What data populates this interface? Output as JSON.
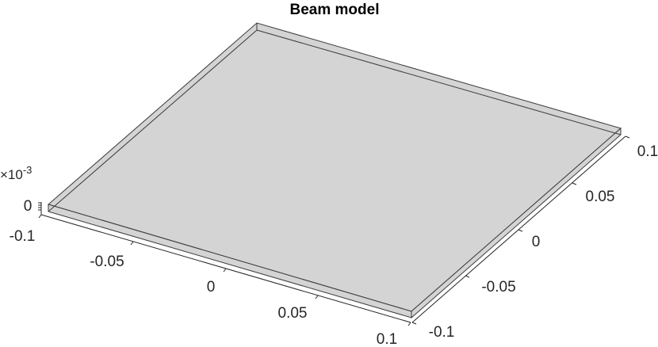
{
  "figure": {
    "title": "Beam model",
    "face_color": "#d4d4d4",
    "edge_color": "#3a3a3a",
    "axis_color": "#262626"
  },
  "axes": {
    "x": {
      "ticks": [
        "-0.1",
        "-0.05",
        "0",
        "0.05",
        "0.1"
      ]
    },
    "y": {
      "ticks": [
        "-0.1",
        "-0.05",
        "0",
        "0.05",
        "0.1"
      ]
    },
    "z": {
      "ticks": [
        "0"
      ],
      "exponent_base": "×10",
      "exponent_power": "-3"
    }
  }
}
